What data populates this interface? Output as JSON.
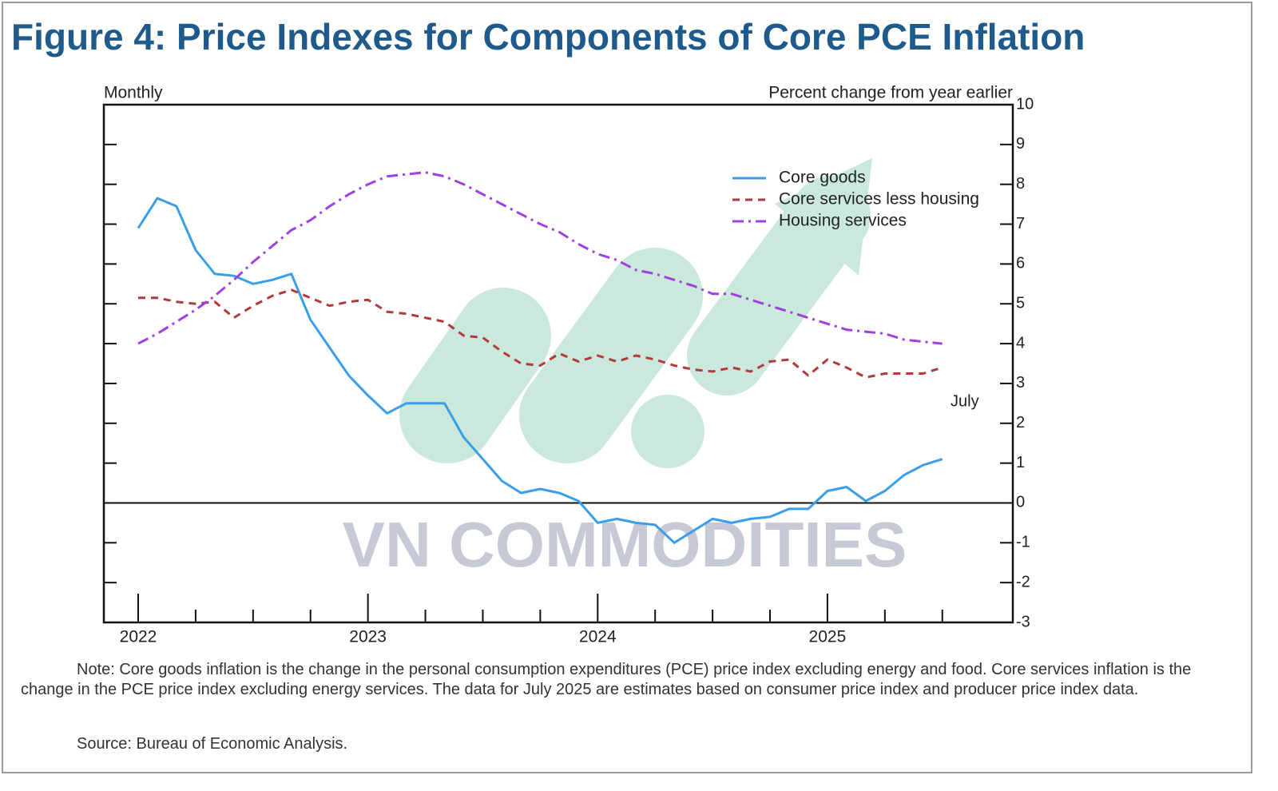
{
  "chart_data": {
    "type": "line",
    "title": "Figure 4: Price Indexes for Components of Core PCE Inflation",
    "left_axis_label": "Monthly",
    "right_axis_label": "Percent change from year earlier",
    "annotation": "July",
    "note": "Note: Core goods inflation is the change in the personal consumption expenditures (PCE) price index excluding energy and food. Core services inflation is the change in the PCE price index excluding energy services. The data for July 2025 are estimates based on consumer price index and producer price index data.",
    "source": "Source: Bureau of Economic Analysis.",
    "watermark": "VN COMMODITIES",
    "categories": [
      "2022",
      null,
      null,
      null,
      null,
      null,
      null,
      null,
      null,
      null,
      null,
      null,
      "2023",
      null,
      null,
      null,
      null,
      null,
      null,
      null,
      null,
      null,
      null,
      null,
      "2024",
      null,
      null,
      null,
      null,
      null,
      null,
      null,
      null,
      null,
      null,
      null,
      "2025",
      null,
      null,
      null,
      null,
      null,
      null
    ],
    "ylim": [
      -3,
      10
    ],
    "yticks": [
      -3,
      -2,
      -1,
      0,
      1,
      2,
      3,
      4,
      5,
      6,
      7,
      8,
      9,
      10
    ],
    "legend": "upper right",
    "series": [
      {
        "name": "Core goods",
        "color": "#3a9ee8",
        "style": "solid",
        "values": [
          6.9,
          7.65,
          7.45,
          6.35,
          5.75,
          5.7,
          5.5,
          5.6,
          5.75,
          4.6,
          3.9,
          3.2,
          2.7,
          2.25,
          2.5,
          2.5,
          2.5,
          1.65,
          1.1,
          0.55,
          0.25,
          0.35,
          0.25,
          0.05,
          -0.5,
          -0.4,
          -0.5,
          -0.55,
          -1.0,
          -0.7,
          -0.4,
          -0.5,
          -0.4,
          -0.35,
          -0.15,
          -0.15,
          0.3,
          0.4,
          0.05,
          0.3,
          0.7,
          0.95,
          1.1
        ]
      },
      {
        "name": "Core services less housing",
        "color": "#b23a3a",
        "style": "dashed",
        "values": [
          5.15,
          5.15,
          5.05,
          5.0,
          5.05,
          4.65,
          4.95,
          5.2,
          5.35,
          5.15,
          4.95,
          5.05,
          5.1,
          4.8,
          4.75,
          4.65,
          4.55,
          4.2,
          4.15,
          3.8,
          3.5,
          3.45,
          3.75,
          3.55,
          3.7,
          3.55,
          3.7,
          3.6,
          3.45,
          3.35,
          3.3,
          3.4,
          3.3,
          3.55,
          3.6,
          3.2,
          3.6,
          3.4,
          3.15,
          3.25,
          3.25,
          3.25,
          3.4
        ]
      },
      {
        "name": "Housing services",
        "color": "#a040e0",
        "style": "dashdot",
        "values": [
          4.0,
          4.25,
          4.55,
          4.85,
          5.2,
          5.6,
          6.05,
          6.45,
          6.85,
          7.1,
          7.45,
          7.75,
          8.0,
          8.2,
          8.25,
          8.3,
          8.2,
          8.0,
          7.75,
          7.5,
          7.25,
          7.0,
          6.8,
          6.5,
          6.25,
          6.1,
          5.85,
          5.75,
          5.6,
          5.45,
          5.25,
          5.25,
          5.1,
          4.95,
          4.8,
          4.65,
          4.5,
          4.35,
          4.3,
          4.25,
          4.1,
          4.05,
          4.0
        ]
      }
    ]
  }
}
